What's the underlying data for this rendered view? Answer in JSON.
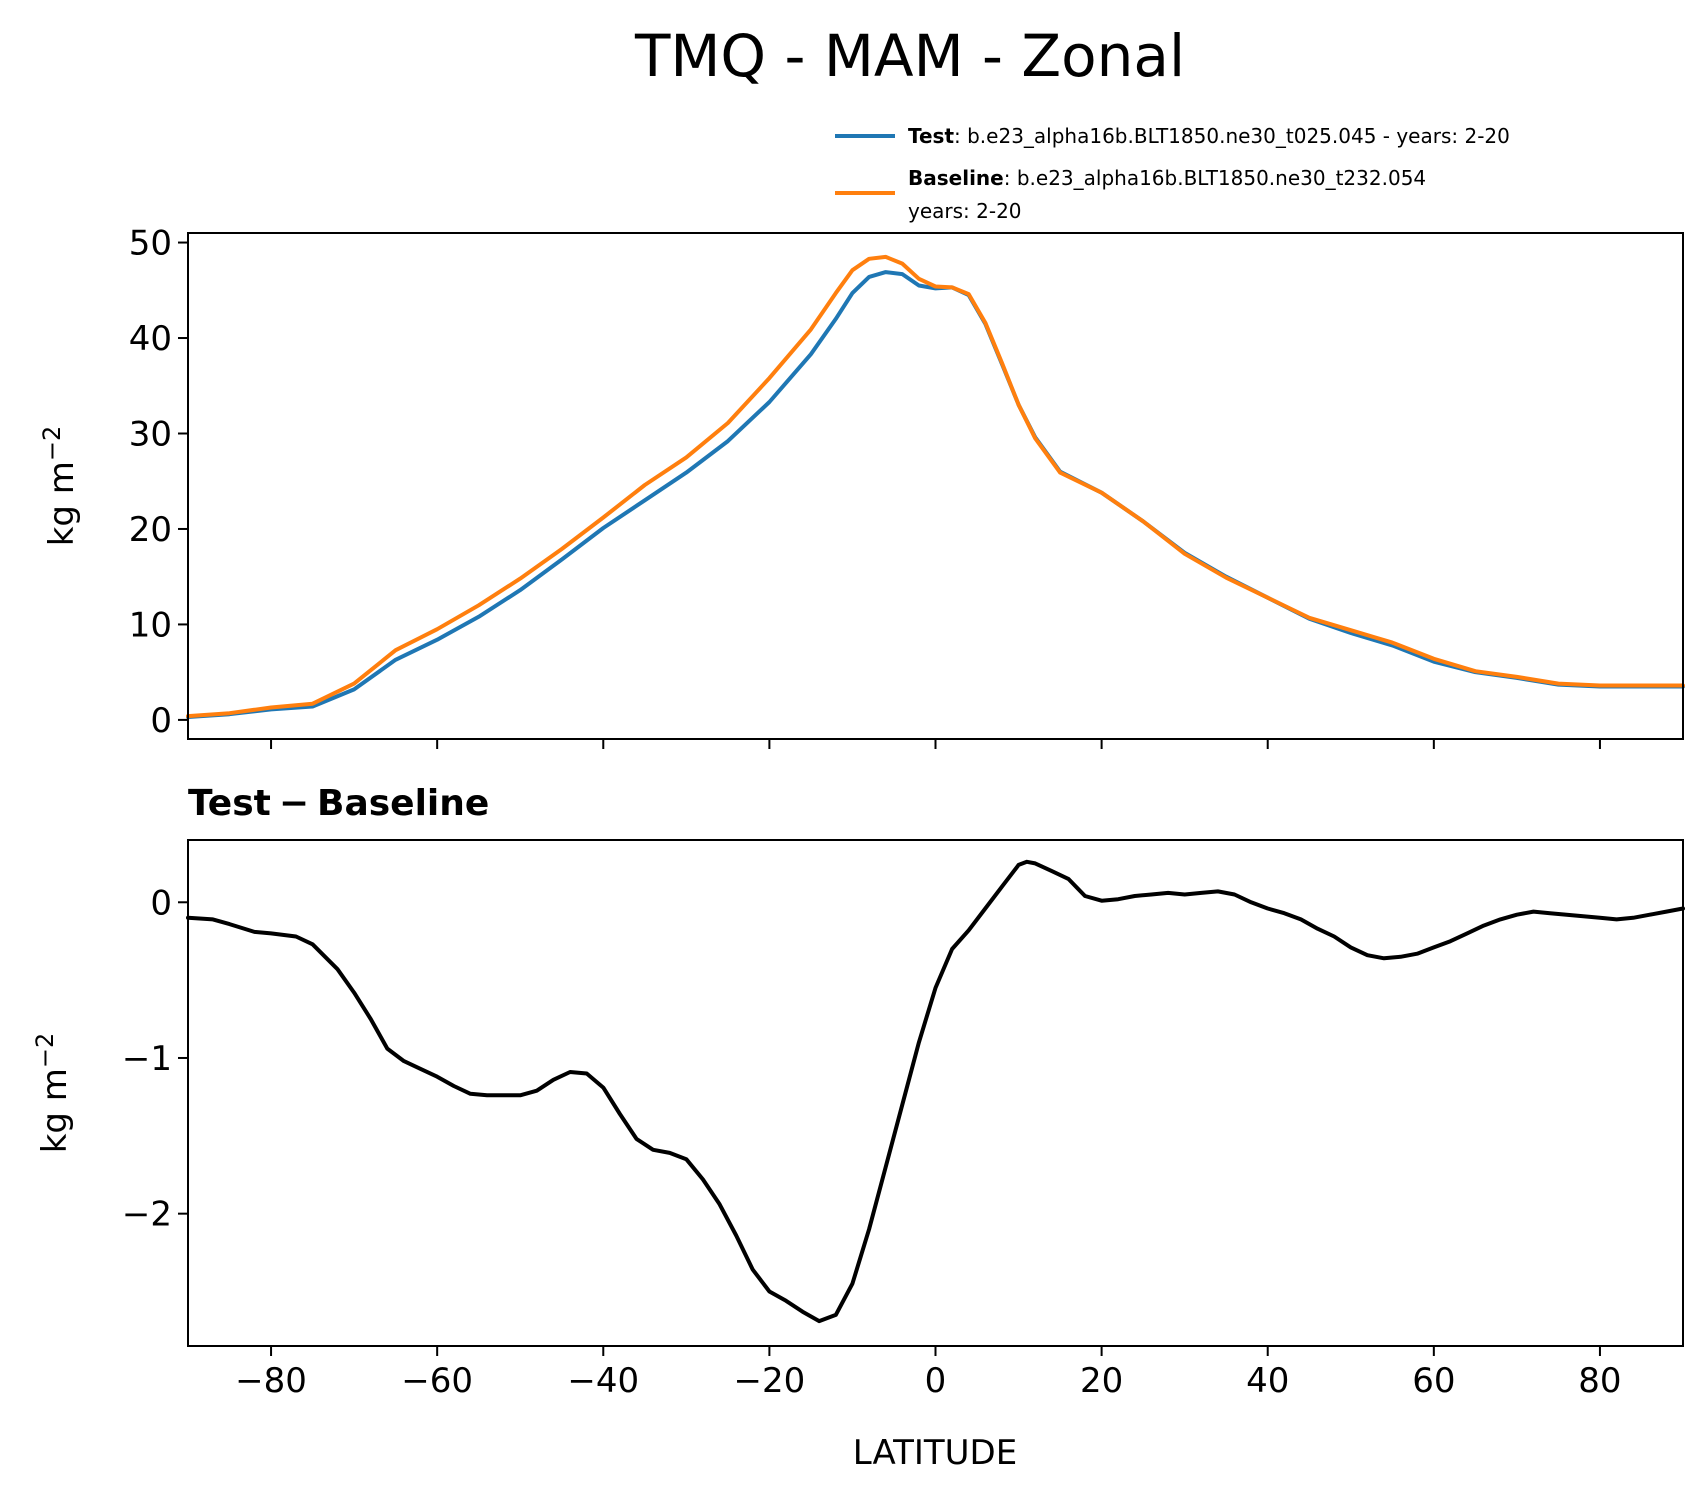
{
  "chart_data": [
    {
      "type": "line",
      "title": "TMQ - MAM - Zonal",
      "ylabel": "kg m",
      "ylabel_sup": "−2",
      "xlim": [
        -90,
        90
      ],
      "ylim": [
        -2,
        51
      ],
      "yticks": [
        0,
        10,
        20,
        30,
        40,
        50
      ],
      "ytick_labels": [
        "0",
        "10",
        "20",
        "30",
        "40",
        "50"
      ],
      "xticks": [
        -80,
        -60,
        -40,
        -20,
        0,
        20,
        40,
        60,
        80
      ],
      "legend": {
        "placement": "above-top-right",
        "entries": [
          {
            "bold": "Test",
            "text": ": b.e23_alpha16b.BLT1850.ne30_t025.045 - years: 2-20",
            "text2": ""
          },
          {
            "bold": "Baseline",
            "text": ": b.e23_alpha16b.BLT1850.ne30_t232.054",
            "text2": "years: 2-20"
          }
        ]
      },
      "x": [
        -90,
        -85,
        -80,
        -75,
        -70,
        -65,
        -60,
        -55,
        -50,
        -45,
        -40,
        -35,
        -30,
        -25,
        -20,
        -15,
        -12,
        -10,
        -8,
        -6,
        -4,
        -2,
        0,
        2,
        4,
        6,
        8,
        10,
        12,
        15,
        20,
        25,
        30,
        35,
        40,
        45,
        50,
        55,
        60,
        65,
        70,
        75,
        80,
        85,
        90
      ],
      "series": [
        {
          "name": "Test",
          "color": "#1f77b4",
          "values": [
            0.3,
            0.6,
            1.1,
            1.4,
            3.2,
            6.3,
            8.4,
            10.8,
            13.6,
            16.8,
            20.1,
            23.0,
            25.9,
            29.2,
            33.3,
            38.3,
            42.0,
            44.7,
            46.4,
            46.9,
            46.7,
            45.5,
            45.2,
            45.3,
            44.5,
            41.5,
            37.3,
            33.0,
            29.6,
            26.0,
            23.8,
            20.8,
            17.5,
            15.0,
            12.8,
            10.6,
            9.1,
            7.8,
            6.1,
            5.0,
            4.4,
            3.7,
            3.5,
            3.5,
            3.5
          ]
        },
        {
          "name": "Baseline",
          "color": "#ff7f0e",
          "values": [
            0.4,
            0.7,
            1.3,
            1.7,
            3.8,
            7.3,
            9.5,
            12.0,
            14.8,
            17.9,
            21.2,
            24.6,
            27.5,
            31.1,
            35.8,
            40.9,
            44.7,
            47.1,
            48.3,
            48.5,
            47.8,
            46.2,
            45.4,
            45.3,
            44.6,
            41.6,
            37.4,
            33.0,
            29.5,
            25.9,
            23.8,
            20.8,
            17.4,
            14.9,
            12.8,
            10.7,
            9.4,
            8.1,
            6.4,
            5.1,
            4.5,
            3.8,
            3.6,
            3.6,
            3.6
          ]
        }
      ]
    },
    {
      "type": "line",
      "title": "Test − Baseline",
      "title_bold_a": "Test",
      "title_op": "−",
      "title_bold_b": "Baseline",
      "xlabel": "LATITUDE",
      "ylabel": "kg m",
      "ylabel_sup": "−2",
      "xlim": [
        -90,
        90
      ],
      "ylim": [
        -2.85,
        0.4
      ],
      "yticks": [
        0,
        -1,
        -2
      ],
      "ytick_labels": [
        "0",
        "−1",
        "−2"
      ],
      "xticks": [
        -80,
        -60,
        -40,
        -20,
        0,
        20,
        40,
        60,
        80
      ],
      "xtick_labels": [
        "−80",
        "−60",
        "−40",
        "−20",
        "0",
        "20",
        "40",
        "60",
        "80"
      ],
      "x": [
        -90,
        -87,
        -85,
        -82,
        -80,
        -77,
        -75,
        -72,
        -70,
        -68,
        -66,
        -64,
        -62,
        -60,
        -58,
        -56,
        -54,
        -52,
        -50,
        -48,
        -46,
        -44,
        -42,
        -40,
        -38,
        -36,
        -34,
        -32,
        -30,
        -28,
        -26,
        -24,
        -22,
        -20,
        -18,
        -16,
        -14,
        -12,
        -10,
        -8,
        -6,
        -4,
        -2,
        0,
        2,
        4,
        6,
        8,
        10,
        11,
        12,
        14,
        16,
        18,
        20,
        22,
        24,
        26,
        28,
        30,
        32,
        34,
        36,
        38,
        40,
        42,
        44,
        46,
        48,
        50,
        52,
        54,
        56,
        58,
        60,
        62,
        64,
        66,
        68,
        70,
        72,
        74,
        76,
        78,
        80,
        82,
        84,
        86,
        88,
        90
      ],
      "series": [
        {
          "name": "Test − Baseline",
          "color": "#000000",
          "values": [
            -0.1,
            -0.11,
            -0.14,
            -0.19,
            -0.2,
            -0.22,
            -0.27,
            -0.43,
            -0.58,
            -0.75,
            -0.94,
            -1.02,
            -1.07,
            -1.12,
            -1.18,
            -1.23,
            -1.24,
            -1.24,
            -1.24,
            -1.21,
            -1.14,
            -1.09,
            -1.1,
            -1.19,
            -1.36,
            -1.52,
            -1.59,
            -1.61,
            -1.65,
            -1.78,
            -1.94,
            -2.14,
            -2.36,
            -2.5,
            -2.56,
            -2.63,
            -2.69,
            -2.65,
            -2.45,
            -2.1,
            -1.7,
            -1.3,
            -0.9,
            -0.55,
            -0.3,
            -0.18,
            -0.04,
            0.1,
            0.24,
            0.26,
            0.25,
            0.2,
            0.15,
            0.04,
            0.01,
            0.02,
            0.04,
            0.05,
            0.06,
            0.05,
            0.06,
            0.07,
            0.05,
            0.0,
            -0.04,
            -0.07,
            -0.11,
            -0.17,
            -0.22,
            -0.29,
            -0.34,
            -0.36,
            -0.35,
            -0.33,
            -0.29,
            -0.25,
            -0.2,
            -0.15,
            -0.11,
            -0.08,
            -0.06,
            -0.07,
            -0.08,
            -0.09,
            -0.1,
            -0.11,
            -0.1,
            -0.08,
            -0.06,
            -0.04
          ]
        }
      ]
    }
  ]
}
